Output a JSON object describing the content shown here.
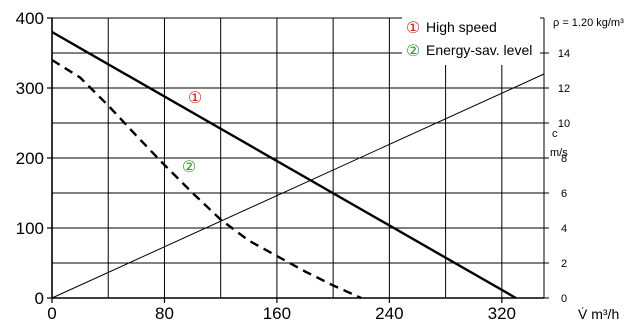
{
  "chart_data": {
    "type": "line",
    "density_note": "ρ = 1.20 kg/m³",
    "x_unit_label": "V̇ m³/h",
    "right_axis_label_c": "c",
    "right_axis_label_unit": "m/s",
    "x_ticks": [
      0,
      80,
      160,
      240,
      320
    ],
    "y_ticks": [
      0,
      100,
      200,
      300,
      400
    ],
    "right_ticks": [
      0,
      2,
      4,
      6,
      8,
      10,
      12,
      14
    ],
    "xlim": [
      0,
      350
    ],
    "ylim": [
      0,
      400
    ],
    "right_lim": [
      0,
      16
    ],
    "series": [
      {
        "name": "High speed",
        "marker": "①",
        "color": "#d42020",
        "style": "solid",
        "x": [
          0,
          330
        ],
        "y": [
          380,
          0
        ]
      },
      {
        "name": "Energy-sav. level",
        "marker": "②",
        "color": "#2a9a2a",
        "style": "dashed",
        "x": [
          0,
          20,
          40,
          60,
          80,
          100,
          120,
          140,
          160,
          180,
          200,
          220
        ],
        "y": [
          340,
          315,
          275,
          232,
          190,
          150,
          112,
          82,
          60,
          38,
          18,
          0
        ]
      }
    ],
    "velocity_line": {
      "x": [
        0,
        350
      ],
      "c": [
        0,
        12.8
      ]
    }
  }
}
